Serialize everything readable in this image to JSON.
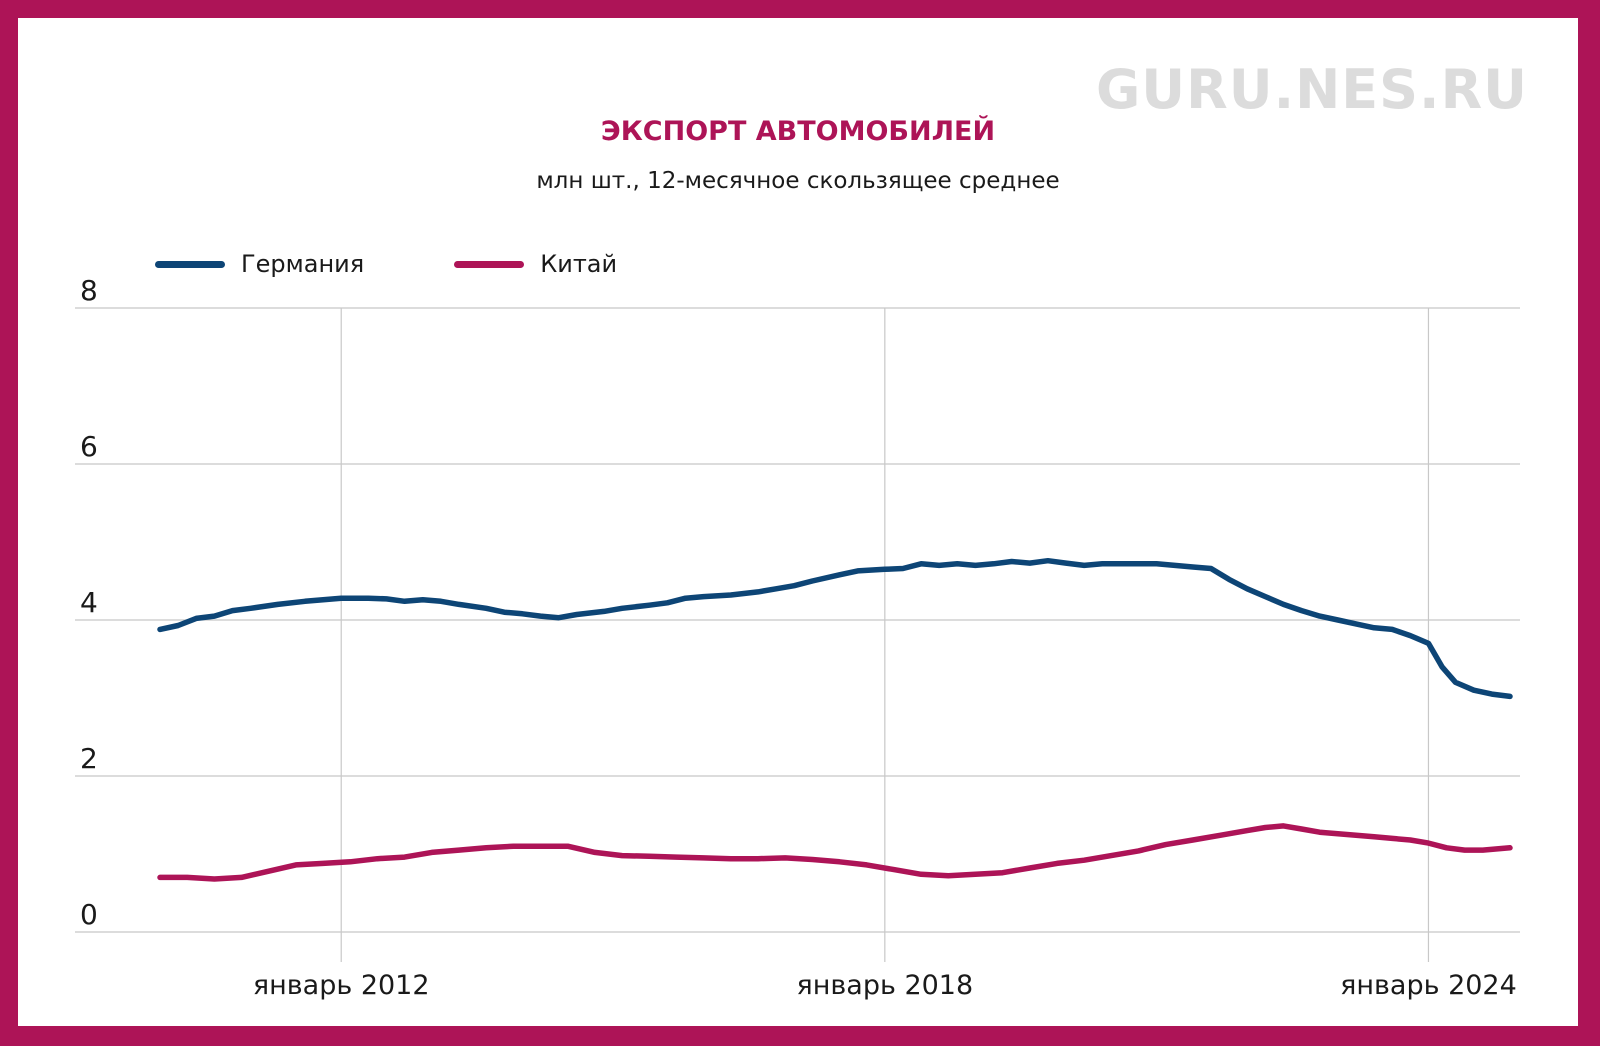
{
  "watermark": "GURU.NES.RU",
  "colors": {
    "frame": "#ad1457",
    "germany": "#0d4576",
    "china": "#ad1457",
    "grid": "#c8c8c8"
  },
  "chart_data": {
    "type": "line",
    "title": "ЭКСПОРТ АВТОМОБИЛЕЙ",
    "subtitle": "млн шт., 12-месячное скользящее среднее",
    "ylim": [
      0,
      8
    ],
    "y_ticks": [
      0,
      2,
      4,
      6,
      8
    ],
    "x_ticks": [
      {
        "label": "январь 2012",
        "year": 2012.0
      },
      {
        "label": "январь 2018",
        "year": 2018.0
      },
      {
        "label": "январь 2024",
        "year": 2024.0
      }
    ],
    "x_range": [
      2010.0,
      2024.9
    ],
    "grid": true,
    "legend_position": "top-left",
    "series": [
      {
        "name": "Германия",
        "color": "#0d4576",
        "points": [
          [
            2010.0,
            3.88
          ],
          [
            2010.2,
            3.93
          ],
          [
            2010.4,
            4.02
          ],
          [
            2010.6,
            4.05
          ],
          [
            2010.8,
            4.12
          ],
          [
            2011.0,
            4.15
          ],
          [
            2011.3,
            4.2
          ],
          [
            2011.6,
            4.24
          ],
          [
            2011.8,
            4.26
          ],
          [
            2012.0,
            4.28
          ],
          [
            2012.3,
            4.28
          ],
          [
            2012.5,
            4.27
          ],
          [
            2012.7,
            4.24
          ],
          [
            2012.9,
            4.26
          ],
          [
            2013.1,
            4.24
          ],
          [
            2013.3,
            4.2
          ],
          [
            2013.6,
            4.15
          ],
          [
            2013.8,
            4.1
          ],
          [
            2014.0,
            4.08
          ],
          [
            2014.2,
            4.05
          ],
          [
            2014.4,
            4.03
          ],
          [
            2014.6,
            4.07
          ],
          [
            2014.9,
            4.11
          ],
          [
            2015.1,
            4.15
          ],
          [
            2015.4,
            4.19
          ],
          [
            2015.6,
            4.22
          ],
          [
            2015.8,
            4.28
          ],
          [
            2016.0,
            4.3
          ],
          [
            2016.3,
            4.32
          ],
          [
            2016.6,
            4.36
          ],
          [
            2016.8,
            4.4
          ],
          [
            2017.0,
            4.44
          ],
          [
            2017.2,
            4.5
          ],
          [
            2017.5,
            4.58
          ],
          [
            2017.7,
            4.63
          ],
          [
            2018.0,
            4.65
          ],
          [
            2018.2,
            4.66
          ],
          [
            2018.4,
            4.72
          ],
          [
            2018.6,
            4.7
          ],
          [
            2018.8,
            4.72
          ],
          [
            2019.0,
            4.7
          ],
          [
            2019.2,
            4.72
          ],
          [
            2019.4,
            4.75
          ],
          [
            2019.6,
            4.73
          ],
          [
            2019.8,
            4.76
          ],
          [
            2020.0,
            4.73
          ],
          [
            2020.2,
            4.7
          ],
          [
            2020.4,
            4.72
          ],
          [
            2020.7,
            4.72
          ],
          [
            2021.0,
            4.72
          ],
          [
            2021.2,
            4.7
          ],
          [
            2021.4,
            4.68
          ],
          [
            2021.6,
            4.66
          ],
          [
            2021.8,
            4.52
          ],
          [
            2022.0,
            4.4
          ],
          [
            2022.2,
            4.3
          ],
          [
            2022.4,
            4.2
          ],
          [
            2022.6,
            4.12
          ],
          [
            2022.8,
            4.05
          ],
          [
            2023.0,
            4.0
          ],
          [
            2023.2,
            3.95
          ],
          [
            2023.4,
            3.9
          ],
          [
            2023.6,
            3.88
          ],
          [
            2023.8,
            3.8
          ],
          [
            2024.0,
            3.7
          ],
          [
            2024.15,
            3.4
          ],
          [
            2024.3,
            3.2
          ],
          [
            2024.5,
            3.1
          ],
          [
            2024.7,
            3.05
          ],
          [
            2024.9,
            3.02
          ]
        ]
      },
      {
        "name": "Китай",
        "color": "#ad1457",
        "points": [
          [
            2010.0,
            0.7
          ],
          [
            2010.3,
            0.7
          ],
          [
            2010.6,
            0.68
          ],
          [
            2010.9,
            0.7
          ],
          [
            2011.2,
            0.78
          ],
          [
            2011.5,
            0.86
          ],
          [
            2011.8,
            0.88
          ],
          [
            2012.1,
            0.9
          ],
          [
            2012.4,
            0.94
          ],
          [
            2012.7,
            0.96
          ],
          [
            2013.0,
            1.02
          ],
          [
            2013.3,
            1.05
          ],
          [
            2013.6,
            1.08
          ],
          [
            2013.9,
            1.1
          ],
          [
            2014.2,
            1.1
          ],
          [
            2014.5,
            1.1
          ],
          [
            2014.8,
            1.02
          ],
          [
            2015.1,
            0.98
          ],
          [
            2015.4,
            0.97
          ],
          [
            2015.7,
            0.96
          ],
          [
            2016.0,
            0.95
          ],
          [
            2016.3,
            0.94
          ],
          [
            2016.6,
            0.94
          ],
          [
            2016.9,
            0.95
          ],
          [
            2017.2,
            0.93
          ],
          [
            2017.5,
            0.9
          ],
          [
            2017.8,
            0.86
          ],
          [
            2018.1,
            0.8
          ],
          [
            2018.4,
            0.74
          ],
          [
            2018.7,
            0.72
          ],
          [
            2019.0,
            0.74
          ],
          [
            2019.3,
            0.76
          ],
          [
            2019.6,
            0.82
          ],
          [
            2019.9,
            0.88
          ],
          [
            2020.2,
            0.92
          ],
          [
            2020.5,
            0.98
          ],
          [
            2020.8,
            1.04
          ],
          [
            2021.1,
            1.12
          ],
          [
            2021.4,
            1.18
          ],
          [
            2021.7,
            1.24
          ],
          [
            2022.0,
            1.3
          ],
          [
            2022.2,
            1.34
          ],
          [
            2022.4,
            1.36
          ],
          [
            2022.6,
            1.32
          ],
          [
            2022.8,
            1.28
          ],
          [
            2023.0,
            1.26
          ],
          [
            2023.2,
            1.24
          ],
          [
            2023.4,
            1.22
          ],
          [
            2023.6,
            1.2
          ],
          [
            2023.8,
            1.18
          ],
          [
            2024.0,
            1.14
          ],
          [
            2024.2,
            1.08
          ],
          [
            2024.4,
            1.05
          ],
          [
            2024.6,
            1.05
          ],
          [
            2024.9,
            1.08
          ]
        ]
      }
    ]
  }
}
